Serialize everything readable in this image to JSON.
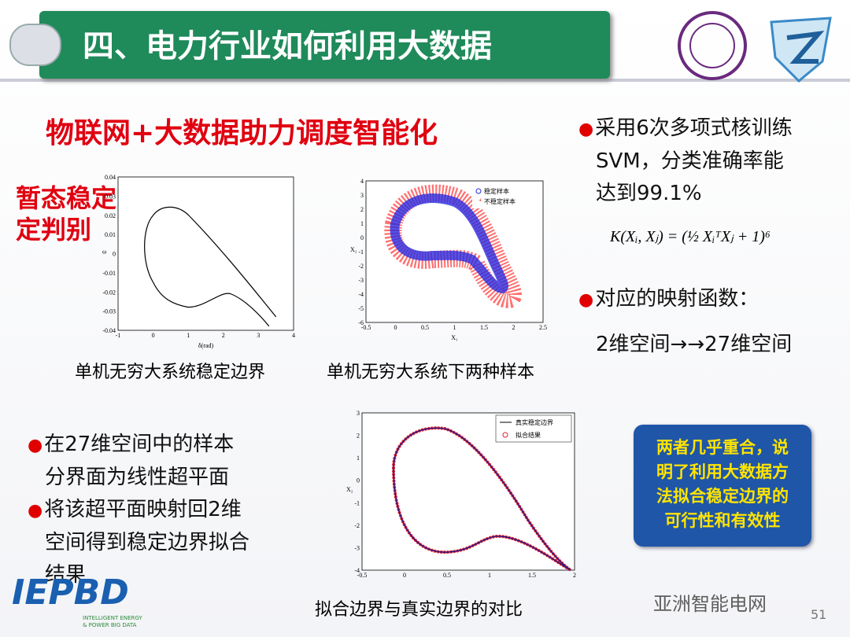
{
  "header": {
    "title": "四、电力行业如何利用大数据"
  },
  "subtitle": "物联网+大数据助力调度智能化",
  "side_label": [
    "暂态稳定",
    "定判别"
  ],
  "right_bullets": {
    "first": [
      "采用6次多项式核训练",
      "SVM，分类准确率能",
      "达到99.1%"
    ],
    "formula": "K(Xᵢ, Xⱼ) = (½ XᵢᵀXⱼ + 1)⁶",
    "second": "对应的映射函数：",
    "mapping": "2维空间→→27维空间"
  },
  "plots": [
    {
      "xticks": [
        "-1",
        "0",
        "1",
        "2",
        "3",
        "4"
      ],
      "yticks": [
        "0.04",
        "0.03",
        "0.02",
        "0.01",
        "0",
        "-0.01",
        "-0.02",
        "-0.03",
        "-0.04"
      ],
      "xlabel": "δ(rad)",
      "ylabel": "ω",
      "caption": "单机无穷大系统稳定边界"
    },
    {
      "xticks": [
        "-0.5",
        "0",
        "0.5",
        "1",
        "1.5",
        "2",
        "2.5"
      ],
      "yticks": [
        "4",
        "3",
        "2",
        "1",
        "0",
        "-1",
        "-2",
        "-3",
        "-4",
        "-5",
        "-6"
      ],
      "xlabel": "X₁",
      "ylabel": "X₂",
      "legend": [
        "稳定样本",
        "不稳定样本"
      ],
      "caption": "单机无穷大系统下两种样本"
    },
    {
      "xticks": [
        "-0.5",
        "0",
        "0.5",
        "1",
        "1.5",
        "2"
      ],
      "yticks": [
        "3",
        "2",
        "1",
        "0",
        "-1",
        "-2",
        "-3",
        "-4"
      ],
      "ylabel": "X₂",
      "legend": [
        "真实稳定边界",
        "拟合结果"
      ],
      "caption": "拟合边界与真实边界的对比"
    }
  ],
  "left_bullets": [
    [
      "在27维空间中的样本",
      "分界面为线性超平面"
    ],
    [
      "将该超平面映射回2维",
      "空间得到稳定边界拟合",
      "结果"
    ]
  ],
  "callout": [
    "两者几乎重合，说",
    "明了利用大数据方",
    "法拟合稳定边界的",
    "可行性和有效性"
  ],
  "logo": {
    "mark": "IEPBD",
    "text": [
      "INTELLIGENT ENERGY",
      "& POWER BIG DATA"
    ]
  },
  "watermark": "亚洲智能电网",
  "page_number": "51"
}
